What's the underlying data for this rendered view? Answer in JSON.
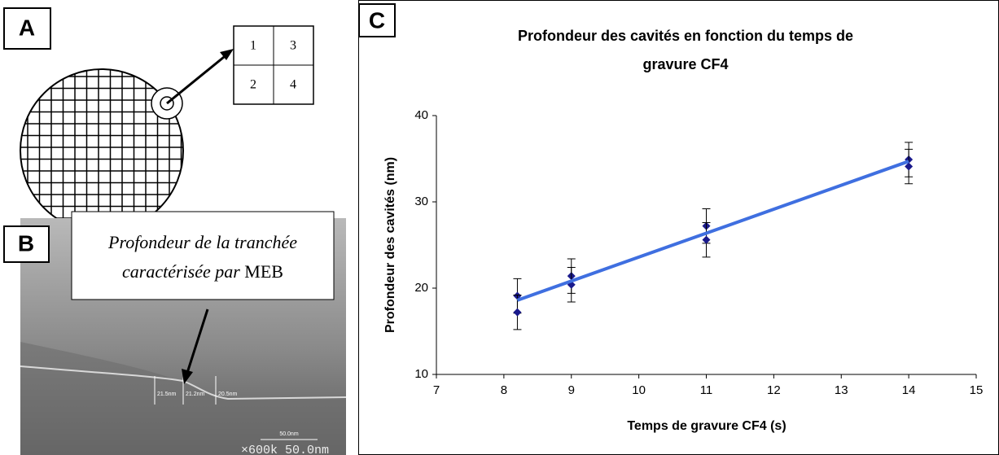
{
  "panels": {
    "a": {
      "label": "A",
      "cells": [
        "1",
        "3",
        "2",
        "4"
      ]
    },
    "b": {
      "label": "B",
      "callout": [
        "Profondeur de la tranchée",
        "caractérisée par",
        "MEB"
      ],
      "measures": [
        "21.5nm",
        "21.2nm",
        "20.5nm"
      ],
      "scale": "50.0nm",
      "footer": "×600k 50.0nm"
    },
    "c": {
      "label": "C"
    }
  },
  "chart_data": {
    "type": "scatter",
    "title": [
      "Profondeur des cavités en fonction du temps de",
      "gravure CF4"
    ],
    "x_label": "Temps de gravure CF4 (s)",
    "y_label": "Profondeur des cavités (nm)",
    "xlim": [
      7,
      15
    ],
    "xticks": [
      7,
      8,
      9,
      10,
      11,
      12,
      13,
      14,
      15
    ],
    "ylim": [
      10,
      40
    ],
    "yticks": [
      10,
      20,
      30,
      40
    ],
    "series": [
      {
        "type": "scatter",
        "color": "#1a1a8c",
        "x": [
          8.2,
          8.2,
          9,
          9,
          11,
          11,
          14,
          14
        ],
        "values": [
          19.1,
          17.2,
          21.4,
          20.4,
          27.2,
          25.6,
          34.9,
          34.1
        ],
        "errors": [
          2,
          2,
          2,
          2,
          2,
          2,
          2,
          2
        ]
      },
      {
        "type": "line",
        "color": "#3f6fe0",
        "x": [
          8.2,
          14
        ],
        "values": [
          18.6,
          34.7
        ]
      }
    ]
  }
}
